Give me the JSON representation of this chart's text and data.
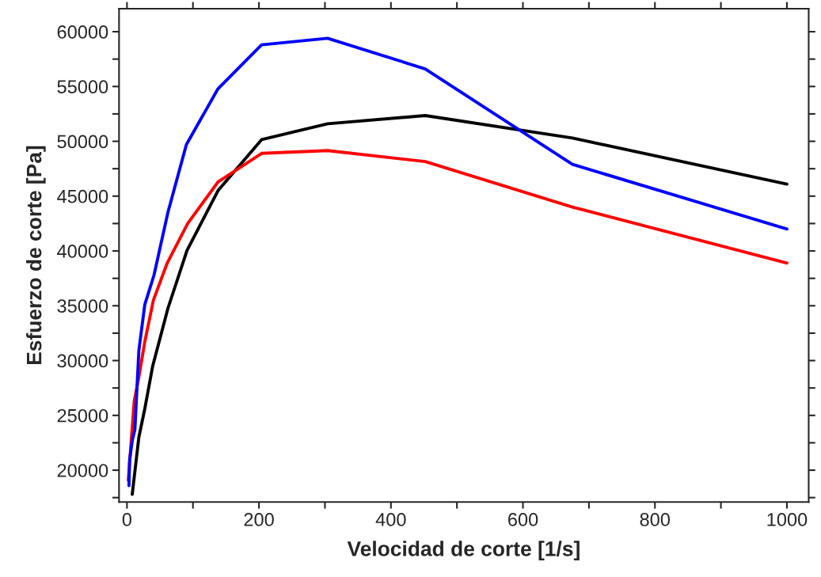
{
  "chart_data": {
    "type": "line",
    "xlabel": "Velocidad de corte [1/s]",
    "ylabel": "Esfuerzo de corte [Pa]",
    "xlim": [
      -12,
      1033
    ],
    "ylim": [
      17100,
      62100
    ],
    "xticks": [
      0,
      {
        "value": 100,
        "label": null
      },
      200,
      {
        "value": 300,
        "label": null
      },
      400,
      {
        "value": 500,
        "label": null
      },
      600,
      {
        "value": 700,
        "label": null
      },
      800,
      {
        "value": 900,
        "label": null
      },
      1000
    ],
    "yticks": [
      {
        "value": 17500,
        "label": null
      },
      20000,
      {
        "value": 22500,
        "label": null
      },
      25000,
      {
        "value": 27500,
        "label": null
      },
      30000,
      {
        "value": 32500,
        "label": null
      },
      35000,
      {
        "value": 37500,
        "label": null
      },
      40000,
      {
        "value": 42500,
        "label": null
      },
      45000,
      {
        "value": 47500,
        "label": null
      },
      50000,
      {
        "value": 52500,
        "label": null
      },
      55000,
      {
        "value": 57500,
        "label": null
      },
      60000
    ],
    "grid": false,
    "marker": "none",
    "line_style": "solid",
    "series": [
      {
        "color": "#000000",
        "x": [
          8,
          18,
          27,
          39,
          62,
          91,
          138,
          204,
          304,
          452,
          675,
          1000
        ],
        "values": [
          17800,
          23000,
          25600,
          29500,
          34750,
          40050,
          45500,
          50150,
          51600,
          52350,
          50300,
          46100
        ]
      },
      {
        "color": "#ff0000",
        "x": [
          2,
          11,
          18,
          27,
          40,
          61,
          92,
          138,
          204,
          304,
          452,
          675,
          1000
        ],
        "values": [
          19100,
          26300,
          28500,
          31700,
          35500,
          38900,
          42500,
          46300,
          48900,
          49150,
          48150,
          44000,
          38900
        ]
      },
      {
        "color": "#0000ff",
        "x": [
          3,
          4,
          8,
          12,
          18,
          27,
          41,
          62,
          90,
          138,
          204,
          304,
          452,
          675,
          1000
        ],
        "values": [
          18600,
          20900,
          22700,
          23700,
          30900,
          35100,
          37800,
          43500,
          49700,
          54800,
          58800,
          59400,
          56600,
          47900,
          42000
        ]
      }
    ]
  }
}
